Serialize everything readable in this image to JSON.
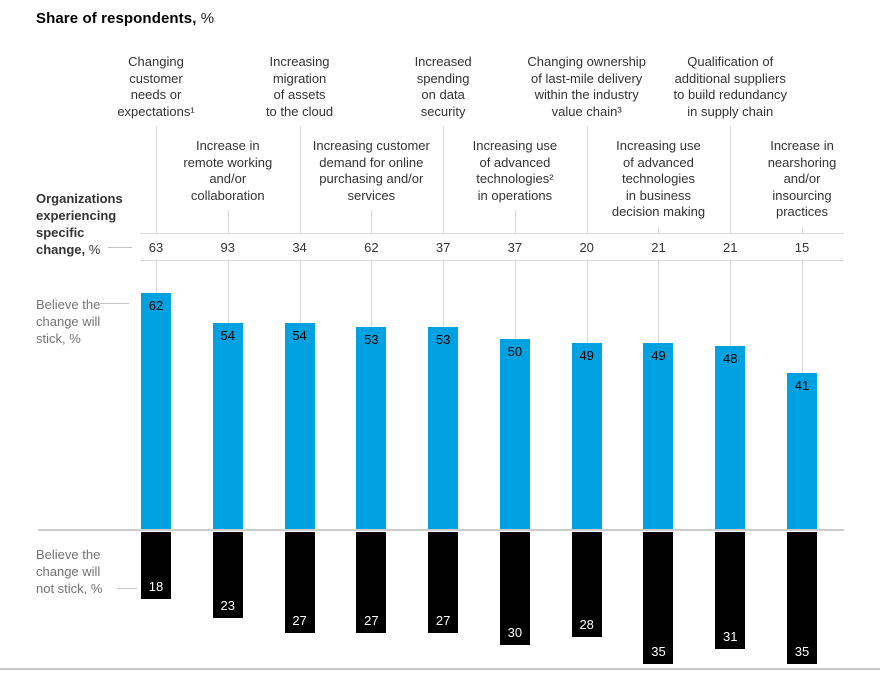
{
  "title": {
    "text": "Share of respondents,",
    "unit": " %"
  },
  "left_labels": {
    "experiencing": {
      "text": "Organizations\nexperiencing\nspecific\nchange,",
      "unit": " %"
    },
    "stick": "Believe the\nchange will\nstick, %",
    "not_stick": "Believe the\nchange will\nnot stick, %"
  },
  "colors": {
    "stick_bar": "#00a1e0",
    "not_stick_bar": "#000000",
    "grid_line": "#d9d9d9",
    "baseline": "#cccccc",
    "text_dark": "#333333",
    "text_gray": "#737373"
  },
  "chart_data": {
    "type": "bar",
    "orientation": "diverging-vertical",
    "title": "Share of respondents, %",
    "unit": "%",
    "categories": [
      "Changing\ncustomer\nneeds or\nexpectations¹",
      "Increase in\nremote working\nand/or\ncollaboration",
      "Increasing\nmigration\nof assets\nto the cloud",
      "Increasing customer\ndemand for online\npurchasing and/or\nservices",
      "Increased\nspending\non data\nsecurity",
      "Increasing use\nof advanced\ntechnologies²\nin operations",
      "Changing ownership\nof last-mile delivery\nwithin the industry\nvalue chain³",
      "Increasing use\nof advanced\ntechnologies\nin business\ndecision making",
      "Qualification of\nadditional suppliers\nto build redundancy\nin supply chain",
      "Increase in\nnearshoring\nand/or\ninsourcing\npractices"
    ],
    "series": [
      {
        "key": "experiencing",
        "name": "Organizations experiencing specific change, %",
        "values": [
          63,
          93,
          34,
          62,
          37,
          37,
          20,
          21,
          21,
          15
        ]
      },
      {
        "key": "stick",
        "name": "Believe the change will stick, %",
        "color": "#00a1e0",
        "values": [
          62,
          54,
          54,
          53,
          53,
          50,
          49,
          49,
          48,
          41
        ]
      },
      {
        "key": "not_stick",
        "name": "Believe the change will not stick, %",
        "color": "#000000",
        "values": [
          18,
          23,
          27,
          27,
          27,
          30,
          28,
          35,
          31,
          35
        ]
      }
    ],
    "layout_hints": {
      "grid": "off",
      "legend": "left-side row labels",
      "value_labels": "inside bar ends"
    }
  }
}
